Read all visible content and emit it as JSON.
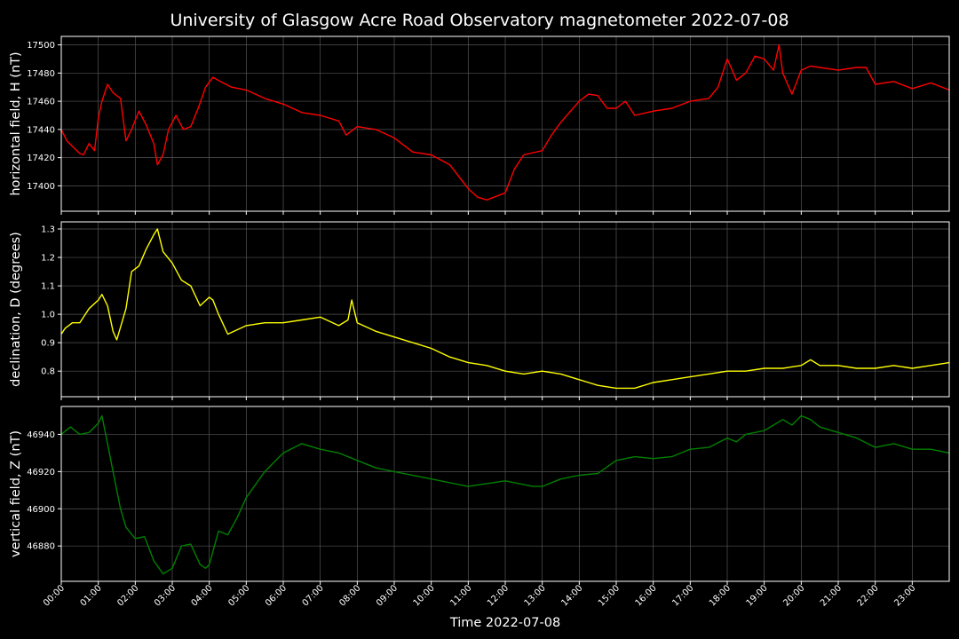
{
  "chart_data": {
    "type": "line",
    "title": "University of Glasgow Acre Road Observatory magnetometer 2022-07-08",
    "xlabel": "Time 2022-07-08",
    "x_tick_labels": [
      "00:00",
      "01:00",
      "02:00",
      "03:00",
      "04:00",
      "05:00",
      "06:00",
      "07:00",
      "08:00",
      "09:00",
      "10:00",
      "11:00",
      "12:00",
      "13:00",
      "14:00",
      "15:00",
      "16:00",
      "17:00",
      "18:00",
      "19:00",
      "20:00",
      "21:00",
      "22:00",
      "23:00"
    ],
    "x_unit": "hours",
    "xlim": [
      0,
      24
    ],
    "grid": true,
    "panels": [
      {
        "name": "h-panel",
        "ylabel": "horizontal field, H (nT)",
        "color": "#ff0000",
        "ylim": [
          17382,
          17506
        ],
        "yticks": [
          17400,
          17420,
          17440,
          17460,
          17480,
          17500
        ],
        "x": [
          0,
          0.15,
          0.3,
          0.5,
          0.6,
          0.75,
          0.9,
          1.0,
          1.1,
          1.25,
          1.4,
          1.6,
          1.75,
          1.9,
          2.1,
          2.3,
          2.5,
          2.6,
          2.75,
          2.9,
          3.1,
          3.3,
          3.5,
          3.7,
          3.9,
          4.1,
          4.3,
          4.6,
          5.0,
          5.5,
          6.0,
          6.5,
          7.0,
          7.5,
          7.7,
          8.0,
          8.5,
          9.0,
          9.5,
          10.0,
          10.5,
          11.0,
          11.25,
          11.5,
          12.0,
          12.25,
          12.5,
          13.0,
          13.25,
          13.5,
          14.0,
          14.25,
          14.5,
          14.75,
          15.0,
          15.25,
          15.5,
          16.0,
          16.5,
          17.0,
          17.5,
          17.75,
          18.0,
          18.25,
          18.5,
          18.75,
          19.0,
          19.25,
          19.4,
          19.5,
          19.75,
          20.0,
          20.25,
          20.5,
          21.0,
          21.5,
          21.75,
          22.0,
          22.5,
          23.0,
          23.5,
          24.0
        ],
        "values": [
          17440,
          17432,
          17428,
          17423,
          17422,
          17430,
          17425,
          17448,
          17460,
          17472,
          17466,
          17462,
          17432,
          17440,
          17453,
          17443,
          17430,
          17415,
          17422,
          17440,
          17450,
          17440,
          17442,
          17455,
          17470,
          17477,
          17474,
          17470,
          17468,
          17462,
          17458,
          17452,
          17450,
          17446,
          17436,
          17442,
          17440,
          17434,
          17424,
          17422,
          17415,
          17398,
          17392,
          17390,
          17395,
          17412,
          17422,
          17425,
          17436,
          17445,
          17460,
          17465,
          17464,
          17455,
          17455,
          17460,
          17450,
          17453,
          17455,
          17460,
          17462,
          17470,
          17490,
          17475,
          17480,
          17492,
          17490,
          17482,
          17500,
          17480,
          17465,
          17482,
          17485,
          17484,
          17482,
          17484,
          17484,
          17472,
          17474,
          17469,
          17473,
          17468
        ]
      },
      {
        "name": "d-panel",
        "ylabel": "declination, D (degrees)",
        "color": "#ffff00",
        "ylim": [
          0.71,
          1.325
        ],
        "yticks": [
          0.8,
          0.9,
          1.0,
          1.1,
          1.2,
          1.3
        ],
        "x": [
          0,
          0.1,
          0.3,
          0.5,
          0.75,
          1.0,
          1.1,
          1.25,
          1.4,
          1.5,
          1.75,
          1.9,
          2.1,
          2.3,
          2.5,
          2.6,
          2.75,
          3.0,
          3.25,
          3.5,
          3.75,
          4.0,
          4.1,
          4.25,
          4.5,
          5.0,
          5.5,
          6.0,
          6.5,
          7.0,
          7.5,
          7.75,
          7.85,
          8.0,
          8.5,
          9.0,
          9.5,
          10.0,
          10.5,
          11.0,
          11.5,
          12.0,
          12.5,
          13.0,
          13.5,
          14.0,
          14.25,
          14.5,
          15.0,
          15.5,
          16.0,
          16.5,
          17.0,
          17.5,
          18.0,
          18.5,
          19.0,
          19.5,
          20.0,
          20.25,
          20.5,
          21.0,
          21.5,
          22.0,
          22.5,
          23.0,
          23.5,
          24.0
        ],
        "values": [
          0.93,
          0.95,
          0.97,
          0.97,
          1.02,
          1.05,
          1.07,
          1.03,
          0.94,
          0.91,
          1.02,
          1.15,
          1.17,
          1.23,
          1.28,
          1.3,
          1.22,
          1.18,
          1.12,
          1.1,
          1.03,
          1.06,
          1.05,
          1.0,
          0.93,
          0.96,
          0.97,
          0.97,
          0.98,
          0.99,
          0.96,
          0.98,
          1.05,
          0.97,
          0.94,
          0.92,
          0.9,
          0.88,
          0.85,
          0.83,
          0.82,
          0.8,
          0.79,
          0.8,
          0.79,
          0.77,
          0.76,
          0.75,
          0.74,
          0.74,
          0.76,
          0.77,
          0.78,
          0.79,
          0.8,
          0.8,
          0.81,
          0.81,
          0.82,
          0.84,
          0.82,
          0.82,
          0.81,
          0.81,
          0.82,
          0.81,
          0.82,
          0.83
        ]
      },
      {
        "name": "z-panel",
        "ylabel": "vertical field, Z (nT)",
        "color": "#008000",
        "ylim": [
          46861,
          46955
        ],
        "yticks": [
          46880,
          46900,
          46920,
          46940
        ],
        "x": [
          0,
          0.25,
          0.5,
          0.75,
          1.0,
          1.1,
          1.25,
          1.4,
          1.6,
          1.75,
          2.0,
          2.25,
          2.5,
          2.75,
          3.0,
          3.25,
          3.5,
          3.75,
          3.9,
          4.0,
          4.25,
          4.5,
          4.75,
          5.0,
          5.5,
          6.0,
          6.5,
          7.0,
          7.5,
          8.0,
          8.5,
          9.0,
          10.0,
          11.0,
          12.0,
          12.75,
          13.0,
          13.5,
          14.0,
          14.5,
          15.0,
          15.5,
          16.0,
          16.5,
          17.0,
          17.5,
          18.0,
          18.25,
          18.5,
          19.0,
          19.25,
          19.5,
          19.75,
          20.0,
          20.25,
          20.5,
          21.0,
          21.5,
          22.0,
          22.5,
          23.0,
          23.5,
          24.0
        ],
        "values": [
          46940,
          46944,
          46940,
          46941,
          46946,
          46950,
          46935,
          46920,
          46900,
          46890,
          46884,
          46885,
          46872,
          46865,
          46868,
          46880,
          46881,
          46870,
          46868,
          46870,
          46888,
          46886,
          46895,
          46906,
          46920,
          46930,
          46935,
          46932,
          46930,
          46926,
          46922,
          46920,
          46916,
          46912,
          46915,
          46912,
          46912,
          46916,
          46918,
          46919,
          46926,
          46928,
          46927,
          46928,
          46932,
          46933,
          46938,
          46936,
          46940,
          46942,
          46945,
          46948,
          46945,
          46950,
          46948,
          46944,
          46941,
          46938,
          46933,
          46935,
          46932,
          46932,
          46930
        ]
      }
    ]
  }
}
